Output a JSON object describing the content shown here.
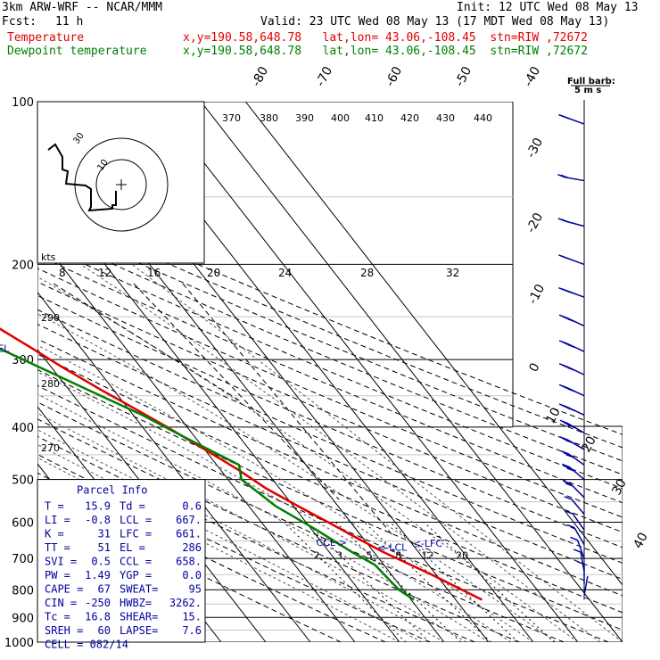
{
  "header": {
    "model": "3km ARW-WRF -- NCAR/MMM",
    "init": "Init: 12 UTC Wed 08 May 13",
    "fcst_label": "Fcst:",
    "fcst_value": "11 h",
    "valid": "Valid: 23 UTC Wed 08 May 13 (17 MDT Wed 08 May 13)",
    "temp_label": "Temperature",
    "temp_loc": "x,y=190.58,648.78   lat,lon= 43.06,-108.45  stn=RIW ,72672",
    "dew_label": "Dewpoint temperature",
    "dew_loc": "x,y=190.58,648.78   lat,lon= 43.06,-108.45  stn=RIW ,72672"
  },
  "colors": {
    "temperature": "#e00000",
    "dewpoint": "#008000",
    "annotation": "#0000a0",
    "isotherm": "#000000"
  },
  "chart_data": {
    "type": "line",
    "chart_kind": "skew-T log-P sounding",
    "pressure_axis": {
      "scale": "log",
      "range_hpa": [
        1000,
        100
      ],
      "ticks": [
        "100",
        "200",
        "300",
        "400",
        "500",
        "600",
        "700",
        "800",
        "900",
        "1000"
      ]
    },
    "isotherm_labels": [
      "-80",
      "-70",
      "-60",
      "-50",
      "-40",
      "-30",
      "-20",
      "-10",
      "0",
      "10",
      "20",
      "30",
      "40"
    ],
    "theta_e_labels": [
      "370",
      "380",
      "390",
      "400",
      "410",
      "420",
      "430",
      "440"
    ],
    "mixing_ratio_labels": [
      "2",
      "3",
      "5",
      "8",
      "12",
      "20"
    ],
    "theta_labels": [
      "290",
      "280",
      "270"
    ],
    "series": [
      {
        "name": "Temperature",
        "points": [
          {
            "p": 835,
            "t": 15.9
          },
          {
            "p": 750,
            "t": 9.0
          },
          {
            "p": 680,
            "t": 2.0
          },
          {
            "p": 640,
            "t": -1.5
          },
          {
            "p": 600,
            "t": -5.0
          },
          {
            "p": 560,
            "t": -9.0
          },
          {
            "p": 520,
            "t": -13.0
          },
          {
            "p": 480,
            "t": -16.0
          },
          {
            "p": 440,
            "t": -20.0
          },
          {
            "p": 400,
            "t": -24.5
          },
          {
            "p": 370,
            "t": -28.5
          },
          {
            "p": 340,
            "t": -33.0
          },
          {
            "p": 310,
            "t": -37.5
          },
          {
            "p": 286,
            "t": -41.0
          },
          {
            "p": 265,
            "t": -44.5
          },
          {
            "p": 250,
            "t": -47.0
          },
          {
            "p": 230,
            "t": -50.0
          },
          {
            "p": 215,
            "t": -52.0
          },
          {
            "p": 200,
            "t": -53.0
          },
          {
            "p": 180,
            "t": -52.5
          },
          {
            "p": 160,
            "t": -53.0
          },
          {
            "p": 140,
            "t": -53.0
          },
          {
            "p": 125,
            "t": -54.0
          },
          {
            "p": 110,
            "t": -55.0
          },
          {
            "p": 103,
            "t": -55.0
          }
        ]
      },
      {
        "name": "Dewpoint temperature",
        "points": [
          {
            "p": 835,
            "t": 0.6
          },
          {
            "p": 800,
            "t": -1.0
          },
          {
            "p": 760,
            "t": -1.5
          },
          {
            "p": 720,
            "t": -2.0
          },
          {
            "p": 680,
            "t": -5.0
          },
          {
            "p": 620,
            "t": -9.0
          },
          {
            "p": 560,
            "t": -14.0
          },
          {
            "p": 500,
            "t": -17.0
          },
          {
            "p": 470,
            "t": -15.0
          },
          {
            "p": 420,
            "t": -22.0
          },
          {
            "p": 380,
            "t": -28.0
          },
          {
            "p": 340,
            "t": -36.0
          },
          {
            "p": 300,
            "t": -45.0
          },
          {
            "p": 280,
            "t": -50.0
          },
          {
            "p": 260,
            "t": -51.0
          },
          {
            "p": 240,
            "t": -53.0
          },
          {
            "p": 220,
            "t": -56.0
          },
          {
            "p": 200,
            "t": -59.0
          },
          {
            "p": 175,
            "t": -63.0
          },
          {
            "p": 150,
            "t": -67.0
          },
          {
            "p": 135,
            "t": -71.0
          },
          {
            "p": 120,
            "t": -82.0
          },
          {
            "p": 108,
            "t": -85.0
          },
          {
            "p": 100,
            "t": -86.0
          }
        ]
      }
    ],
    "annotations": [
      {
        "label": "<-EL",
        "p": 286
      },
      {
        "label": "CCL->",
        "p": 658
      },
      {
        "label": "<-LCL",
        "p": 667
      },
      {
        "label": "<-LFC",
        "p": 661
      }
    ],
    "hodograph": {
      "unit_label": "kts",
      "speed_labels": [
        "8",
        "12",
        "16",
        "20",
        "24",
        "28",
        "32"
      ],
      "ring_labels": [
        "30",
        "10"
      ]
    },
    "wind_barbs": {
      "label_line1": "Full barb:",
      "label_line2": "5 m s",
      "samples": [
        {
          "p": 110,
          "spd": 10,
          "dir": 250
        },
        {
          "p": 140,
          "spd": 12,
          "dir": 260
        },
        {
          "p": 170,
          "spd": 14,
          "dir": 255
        },
        {
          "p": 200,
          "spd": 10,
          "dir": 250
        },
        {
          "p": 230,
          "spd": 20,
          "dir": 250
        },
        {
          "p": 260,
          "spd": 22,
          "dir": 245
        },
        {
          "p": 290,
          "spd": 20,
          "dir": 245
        },
        {
          "p": 320,
          "spd": 20,
          "dir": 245
        },
        {
          "p": 350,
          "spd": 20,
          "dir": 245
        },
        {
          "p": 380,
          "spd": 20,
          "dir": 245
        },
        {
          "p": 410,
          "spd": 20,
          "dir": 240
        },
        {
          "p": 440,
          "spd": 18,
          "dir": 240
        },
        {
          "p": 470,
          "spd": 18,
          "dir": 235
        },
        {
          "p": 500,
          "spd": 15,
          "dir": 230
        },
        {
          "p": 540,
          "spd": 10,
          "dir": 225
        },
        {
          "p": 580,
          "spd": 8,
          "dir": 220
        },
        {
          "p": 620,
          "spd": 8,
          "dir": 215
        },
        {
          "p": 660,
          "spd": 6,
          "dir": 210
        },
        {
          "p": 700,
          "spd": 6,
          "dir": 200
        },
        {
          "p": 740,
          "spd": 5,
          "dir": 190
        },
        {
          "p": 780,
          "spd": 5,
          "dir": 180
        },
        {
          "p": 820,
          "spd": 4,
          "dir": 170
        }
      ]
    },
    "parcel_info": {
      "title": "Parcel Info",
      "rows": [
        [
          "T  =",
          "15.9",
          "Td =",
          "0.6"
        ],
        [
          "LI =",
          "-0.8",
          "LCL =",
          "667."
        ],
        [
          "K  =",
          "31",
          "LFC =",
          "661."
        ],
        [
          "TT =",
          "51",
          "EL  =",
          "286"
        ],
        [
          "SVI =",
          "0.5",
          "CCL =",
          "658."
        ],
        [
          "PW =",
          "1.49",
          "YGP =",
          "0.0"
        ],
        [
          "CAPE =",
          "67",
          "SWEAT=",
          "95"
        ],
        [
          "CIN =",
          "-250",
          "HWBZ=",
          "3262."
        ],
        [
          "Tc =",
          "16.8",
          "SHEAR=",
          "15."
        ],
        [
          "SREH =",
          "60",
          "LAPSE=",
          "7.6"
        ]
      ],
      "cell": "CELL = 082/14"
    }
  }
}
